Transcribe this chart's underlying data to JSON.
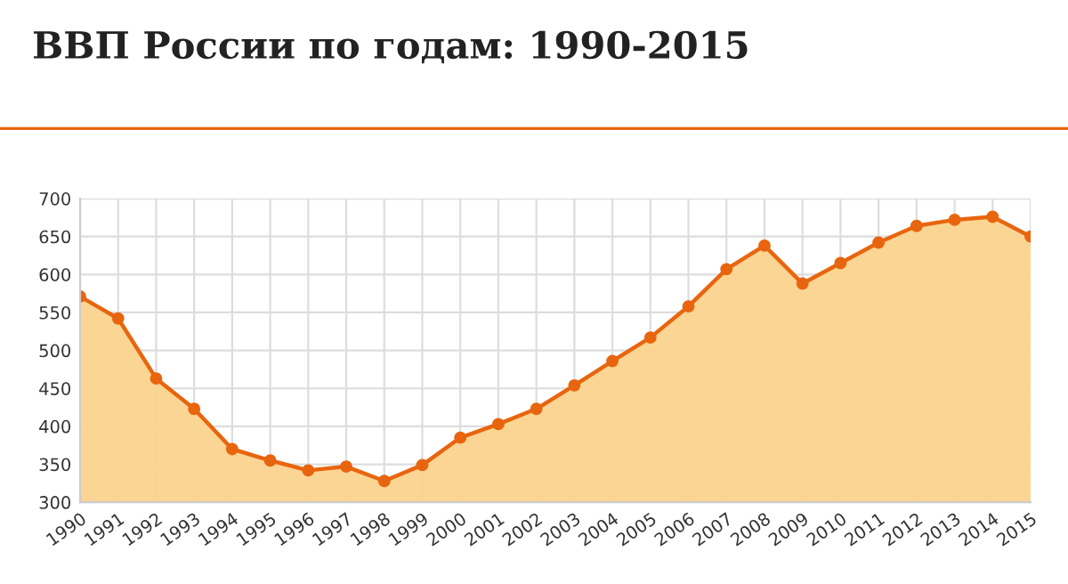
{
  "chart_data": {
    "type": "area",
    "title": "ВВП России по годам: 1990-2015",
    "categories": [
      "1990",
      "1991",
      "1992",
      "1993",
      "1994",
      "1995",
      "1996",
      "1997",
      "1998",
      "1999",
      "2000",
      "2001",
      "2002",
      "2003",
      "2004",
      "2005",
      "2006",
      "2007",
      "2008",
      "2009",
      "2010",
      "2011",
      "2012",
      "2013",
      "2014",
      "2015"
    ],
    "series": [
      {
        "color": "#e8650f",
        "values": [
          571,
          542,
          463,
          423,
          370,
          355,
          342,
          347,
          328,
          349,
          385,
          403,
          423,
          454,
          486,
          517,
          558,
          607,
          638,
          588,
          615,
          642,
          664,
          672,
          676,
          650
        ]
      }
    ],
    "ylim": [
      300,
      700
    ],
    "yticks": [
      300,
      350,
      400,
      450,
      500,
      550,
      600,
      650,
      700
    ],
    "grid": true,
    "marker": "circle",
    "legend": false
  }
}
